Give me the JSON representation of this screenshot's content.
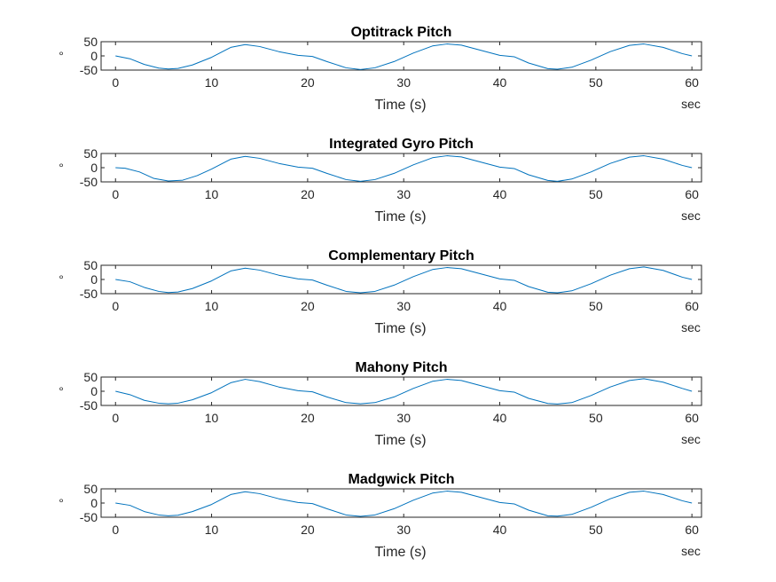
{
  "figure": {
    "background": "#ffffff",
    "line_color": "#0072bd",
    "axis_color": "#262626"
  },
  "chart_data": [
    {
      "type": "line",
      "title": "Optitrack Pitch",
      "xlabel": "Time (s)",
      "ylabel": "°",
      "x_unit_label": "sec",
      "xlim": [
        -1.5,
        61
      ],
      "ylim": [
        -50,
        50
      ],
      "xticks": [
        0,
        10,
        20,
        30,
        40,
        50,
        60
      ],
      "xtick_labels": [
        "0",
        "10",
        "20",
        "30",
        "40",
        "50",
        "60"
      ],
      "yticks": [
        50,
        0,
        -50
      ],
      "ytick_labels": [
        "50",
        "0",
        "-50"
      ],
      "grid": false,
      "series": [
        {
          "x": [
            0,
            1.5,
            3,
            4.5,
            5.5,
            6.5,
            8,
            10,
            12,
            13.5,
            15,
            17,
            19,
            20.5,
            22,
            24,
            25.5,
            27,
            29,
            31,
            33,
            34.5,
            36,
            38,
            40,
            41.5,
            43,
            45,
            46,
            47.5,
            49.5,
            51.5,
            53.5,
            55,
            57,
            59,
            60
          ],
          "y": [
            0,
            -10,
            -30,
            -43,
            -46,
            -44,
            -32,
            -5,
            30,
            40,
            33,
            15,
            2,
            -2,
            -20,
            -42,
            -48,
            -42,
            -20,
            10,
            35,
            42,
            38,
            20,
            2,
            -3,
            -25,
            -45,
            -47,
            -40,
            -15,
            15,
            37,
            42,
            30,
            8,
            0
          ]
        }
      ]
    },
    {
      "type": "line",
      "title": "Integrated Gyro Pitch",
      "xlabel": "Time (s)",
      "ylabel": "°",
      "x_unit_label": "sec",
      "xlim": [
        -1.5,
        61
      ],
      "ylim": [
        -50,
        50
      ],
      "xticks": [
        0,
        10,
        20,
        30,
        40,
        50,
        60
      ],
      "xtick_labels": [
        "0",
        "10",
        "20",
        "30",
        "40",
        "50",
        "60"
      ],
      "yticks": [
        50,
        0,
        -50
      ],
      "ytick_labels": [
        "50",
        "0",
        "-50"
      ],
      "grid": false,
      "series": [
        {
          "x": [
            0,
            1,
            2.5,
            4,
            5.5,
            7,
            8.5,
            10,
            12,
            13.5,
            15,
            17,
            19,
            20.5,
            22,
            24,
            25.5,
            27,
            29,
            31,
            33,
            34.5,
            36,
            38,
            40,
            41.5,
            43,
            45,
            46,
            47.5,
            49.5,
            51.5,
            53.5,
            55,
            57,
            59,
            60
          ],
          "y": [
            0,
            -2,
            -15,
            -38,
            -47,
            -44,
            -28,
            -5,
            30,
            40,
            33,
            15,
            2,
            -2,
            -20,
            -42,
            -48,
            -42,
            -20,
            10,
            35,
            42,
            38,
            20,
            2,
            -3,
            -25,
            -45,
            -48,
            -40,
            -15,
            15,
            37,
            42,
            30,
            8,
            0
          ]
        }
      ]
    },
    {
      "type": "line",
      "title": "Complementary Pitch",
      "xlabel": "Time (s)",
      "ylabel": "°",
      "x_unit_label": "sec",
      "xlim": [
        -1.5,
        61
      ],
      "ylim": [
        -50,
        50
      ],
      "xticks": [
        0,
        10,
        20,
        30,
        40,
        50,
        60
      ],
      "xtick_labels": [
        "0",
        "10",
        "20",
        "30",
        "40",
        "50",
        "60"
      ],
      "yticks": [
        50,
        0,
        -50
      ],
      "ytick_labels": [
        "50",
        "0",
        "-50"
      ],
      "grid": false,
      "series": [
        {
          "x": [
            0,
            1.5,
            3,
            4.5,
            5.5,
            6.5,
            8,
            10,
            12,
            13.5,
            15,
            17,
            19,
            20.5,
            22,
            24,
            25.5,
            27,
            29,
            31,
            33,
            34.5,
            36,
            38,
            40,
            41.5,
            43,
            45,
            46,
            47.5,
            49.5,
            51.5,
            53.5,
            55,
            57,
            59,
            60
          ],
          "y": [
            0,
            -8,
            -28,
            -42,
            -46,
            -44,
            -32,
            -5,
            30,
            40,
            33,
            15,
            2,
            -2,
            -20,
            -42,
            -47,
            -42,
            -20,
            10,
            35,
            42,
            38,
            20,
            2,
            -3,
            -25,
            -45,
            -47,
            -40,
            -15,
            15,
            38,
            44,
            32,
            8,
            0
          ]
        }
      ]
    },
    {
      "type": "line",
      "title": "Mahony Pitch",
      "xlabel": "Time (s)",
      "ylabel": "°",
      "x_unit_label": "sec",
      "xlim": [
        -1.5,
        61
      ],
      "ylim": [
        -50,
        50
      ],
      "xticks": [
        0,
        10,
        20,
        30,
        40,
        50,
        60
      ],
      "xtick_labels": [
        "0",
        "10",
        "20",
        "30",
        "40",
        "50",
        "60"
      ],
      "yticks": [
        50,
        0,
        -50
      ],
      "ytick_labels": [
        "50",
        "0",
        "-50"
      ],
      "grid": false,
      "series": [
        {
          "x": [
            0,
            1.5,
            3,
            4.5,
            5.5,
            6.5,
            8,
            10,
            12,
            13.5,
            15,
            17,
            19,
            20.5,
            22,
            24,
            25.5,
            27,
            29,
            31,
            33,
            34.5,
            36,
            38,
            40,
            41.5,
            43,
            45,
            46,
            47.5,
            49.5,
            51.5,
            53.5,
            55,
            57,
            59,
            60
          ],
          "y": [
            0,
            -12,
            -32,
            -42,
            -44,
            -42,
            -30,
            -5,
            30,
            42,
            34,
            15,
            2,
            -2,
            -20,
            -40,
            -44,
            -40,
            -20,
            10,
            35,
            42,
            38,
            20,
            2,
            -3,
            -25,
            -43,
            -45,
            -40,
            -15,
            15,
            38,
            44,
            32,
            10,
            0
          ]
        }
      ]
    },
    {
      "type": "line",
      "title": "Madgwick Pitch",
      "xlabel": "Time (s)",
      "ylabel": "°",
      "x_unit_label": "sec",
      "xlim": [
        -1.5,
        61
      ],
      "ylim": [
        -50,
        50
      ],
      "xticks": [
        0,
        10,
        20,
        30,
        40,
        50,
        60
      ],
      "xtick_labels": [
        "0",
        "10",
        "20",
        "30",
        "40",
        "50",
        "60"
      ],
      "yticks": [
        50,
        0,
        -50
      ],
      "ytick_labels": [
        "50",
        "0",
        "-50"
      ],
      "grid": false,
      "series": [
        {
          "x": [
            0,
            1.5,
            3,
            4.5,
            5.5,
            6.5,
            8,
            10,
            12,
            13.5,
            15,
            17,
            19,
            20.5,
            22,
            24,
            25.5,
            27,
            29,
            31,
            33,
            34.5,
            36,
            38,
            40,
            41.5,
            43,
            45,
            46,
            47.5,
            49.5,
            51.5,
            53.5,
            55,
            57,
            59,
            60
          ],
          "y": [
            0,
            -8,
            -30,
            -42,
            -45,
            -43,
            -30,
            -5,
            30,
            40,
            33,
            15,
            2,
            -2,
            -20,
            -42,
            -47,
            -42,
            -20,
            10,
            35,
            42,
            38,
            20,
            2,
            -3,
            -25,
            -45,
            -46,
            -40,
            -15,
            15,
            38,
            42,
            30,
            8,
            0
          ]
        }
      ]
    }
  ]
}
